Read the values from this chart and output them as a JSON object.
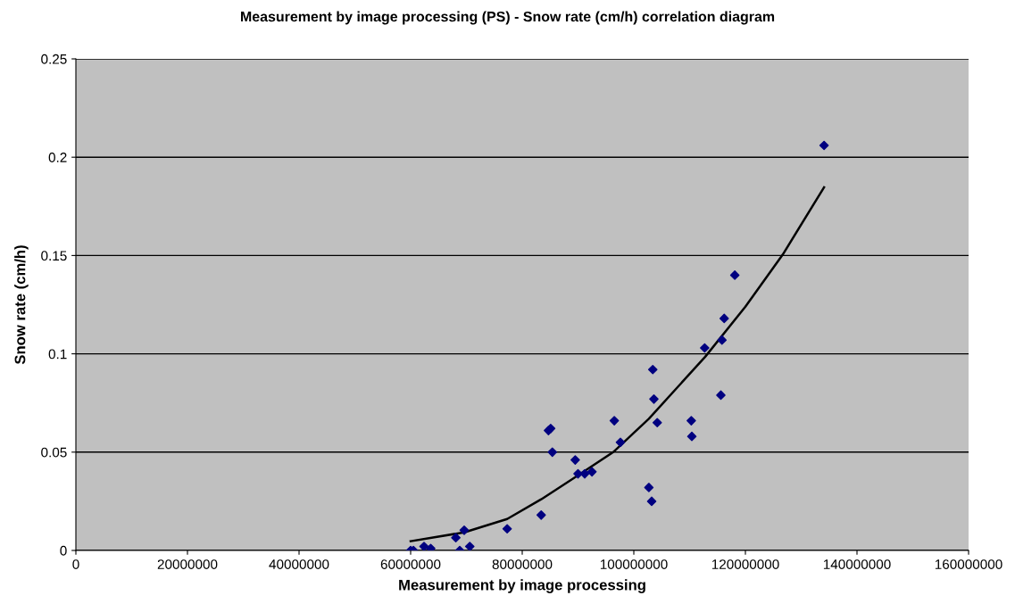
{
  "chart_data": {
    "type": "scatter",
    "title": "Measurement by image processing (PS) - Snow rate (cm/h) correlation diagram",
    "xlabel": "Measurement by image processing",
    "ylabel": "Snow rate (cm/h)",
    "xlim": [
      0,
      160000000
    ],
    "xticks": [
      0,
      20000000,
      40000000,
      60000000,
      80000000,
      100000000,
      120000000,
      140000000,
      160000000
    ],
    "ylim": [
      0,
      0.25
    ],
    "yticks": [
      0,
      0.05,
      0.1,
      0.15,
      0.2,
      0.25
    ],
    "grid": "y",
    "marker": "diamond",
    "series": [
      {
        "color": "#000080",
        "x": [
          60000000,
          60500000,
          62400000,
          63600000,
          68100000,
          69600000,
          68800000,
          70600000,
          77300000,
          83400000,
          84700000,
          85100000,
          85400000,
          89500000,
          90000000,
          91200000,
          92500000,
          96500000,
          97600000,
          102700000,
          103200000,
          103400000,
          103600000,
          104200000,
          110300000,
          110400000,
          118100000,
          116200000,
          115800000,
          112700000,
          115600000,
          134100000
        ],
        "values": [
          0,
          0,
          0.002,
          0.001,
          0.0065,
          0.0103,
          0,
          0.002,
          0.011,
          0.018,
          0.061,
          0.062,
          0.05,
          0.046,
          0.039,
          0.039,
          0.04,
          0.066,
          0.055,
          0.032,
          0.025,
          0.092,
          0.077,
          0.065,
          0.066,
          0.058,
          0.14,
          0.118,
          0.107,
          0.103,
          0.079,
          0.206
        ]
      },
      {
        "type": "line",
        "color": "#000000",
        "marker": "none",
        "x": [
          60000000,
          69600000,
          77300000,
          83400000,
          89900000,
          96300000,
          102700000,
          112800000,
          120000000,
          126700000,
          134100000
        ],
        "values": [
          0.0047,
          0.0092,
          0.016,
          0.026,
          0.038,
          0.05,
          0.067,
          0.0985,
          0.124,
          0.1505,
          0.1847
        ]
      }
    ]
  }
}
